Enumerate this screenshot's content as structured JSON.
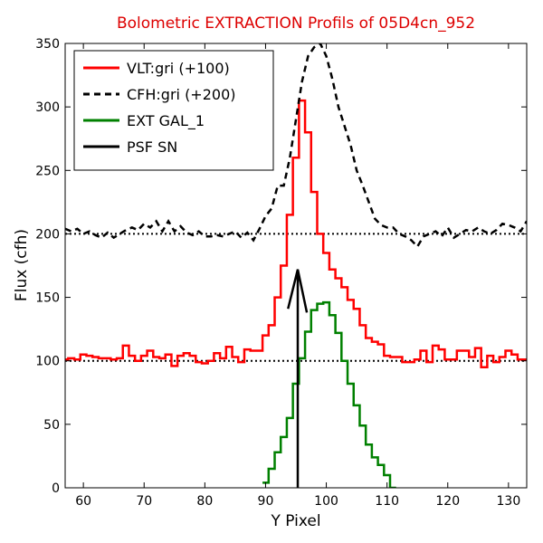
{
  "chart_data": {
    "type": "line",
    "title": "Bolometric EXTRACTION Profils of 05D4cn_952",
    "title_color": "#dd0000",
    "xlabel": "Y Pixel",
    "ylabel": "Flux (cfh)",
    "xlim": [
      57,
      133
    ],
    "ylim": [
      0,
      350
    ],
    "xticks": [
      60,
      70,
      80,
      90,
      100,
      110,
      120,
      130
    ],
    "yticks": [
      0,
      50,
      100,
      150,
      200,
      250,
      300,
      350
    ],
    "legend_position": "top-left",
    "reference_lines": [
      {
        "y": 100,
        "style": "dotted",
        "color": "#000000"
      },
      {
        "y": 200,
        "style": "dotted",
        "color": "#000000"
      }
    ],
    "series": [
      {
        "name": "VLT:gri (+100)",
        "color": "#ff0000",
        "style": "steps",
        "x": [
          57,
          58,
          59,
          60,
          61,
          62,
          63,
          64,
          65,
          66,
          67,
          68,
          69,
          70,
          71,
          72,
          73,
          74,
          75,
          76,
          77,
          78,
          79,
          80,
          81,
          82,
          83,
          84,
          85,
          86,
          87,
          88,
          89,
          90,
          91,
          92,
          93,
          94,
          95,
          96,
          97,
          98,
          99,
          100,
          101,
          102,
          103,
          104,
          105,
          106,
          107,
          108,
          109,
          110,
          111,
          112,
          113,
          114,
          115,
          116,
          117,
          118,
          119,
          120,
          121,
          122,
          123,
          124,
          125,
          126,
          127,
          128,
          129,
          130,
          131,
          132,
          133
        ],
        "y": [
          101,
          102,
          101,
          105,
          104,
          103,
          102,
          102,
          101,
          102,
          112,
          104,
          100,
          104,
          108,
          103,
          102,
          105,
          96,
          104,
          106,
          104,
          99,
          98,
          100,
          106,
          102,
          111,
          103,
          99,
          109,
          108,
          108,
          120,
          128,
          150,
          175,
          215,
          260,
          305,
          280,
          233,
          200,
          185,
          172,
          165,
          158,
          148,
          141,
          128,
          118,
          115,
          113,
          104,
          103,
          103,
          99,
          99,
          101,
          108,
          99,
          112,
          109,
          101,
          101,
          108,
          108,
          103,
          110,
          95,
          104,
          99,
          103,
          108,
          105,
          101,
          101
        ]
      },
      {
        "name": "CFH:gri (+200)",
        "color": "#000000",
        "style": "dashed",
        "x": [
          57,
          58,
          59,
          60,
          61,
          62,
          63,
          64,
          65,
          66,
          67,
          68,
          69,
          70,
          71,
          72,
          73,
          74,
          75,
          76,
          77,
          78,
          79,
          80,
          81,
          82,
          83,
          84,
          85,
          86,
          87,
          88,
          89,
          90,
          91,
          92,
          93,
          94,
          95,
          96,
          97,
          98,
          99,
          100,
          101,
          102,
          103,
          104,
          105,
          106,
          107,
          108,
          109,
          110,
          111,
          112,
          113,
          114,
          115,
          116,
          117,
          118,
          119,
          120,
          121,
          122,
          123,
          124,
          125,
          126,
          127,
          128,
          129,
          130,
          131,
          132,
          133
        ],
        "y": [
          204,
          202,
          204,
          200,
          202,
          199,
          197,
          201,
          197,
          200,
          203,
          205,
          203,
          208,
          205,
          210,
          202,
          210,
          202,
          206,
          201,
          199,
          202,
          198,
          198,
          199,
          198,
          200,
          202,
          197,
          201,
          195,
          204,
          214,
          220,
          238,
          238,
          260,
          290,
          320,
          340,
          347,
          350,
          340,
          322,
          300,
          285,
          270,
          250,
          238,
          225,
          212,
          207,
          205,
          205,
          200,
          198,
          195,
          190,
          198,
          200,
          202,
          198,
          205,
          197,
          200,
          203,
          202,
          205,
          202,
          200,
          203,
          208,
          207,
          205,
          202,
          210
        ]
      },
      {
        "name": "EXT GAL_1",
        "color": "#008000",
        "style": "steps",
        "x": [
          90,
          91,
          92,
          93,
          94,
          95,
          96,
          97,
          98,
          99,
          100,
          101,
          102,
          103,
          104,
          105,
          106,
          107,
          108,
          109,
          110,
          111
        ],
        "y": [
          4,
          15,
          28,
          40,
          55,
          82,
          102,
          123,
          140,
          145,
          146,
          136,
          122,
          100,
          82,
          65,
          49,
          34,
          24,
          18,
          10,
          0
        ]
      },
      {
        "name": "PSF SN",
        "color": "#000000",
        "style": "solid",
        "x": [
          95.3,
          95.3,
          93.7,
          95.3,
          96.8
        ],
        "y": [
          0,
          172,
          141,
          172,
          138
        ]
      }
    ]
  }
}
